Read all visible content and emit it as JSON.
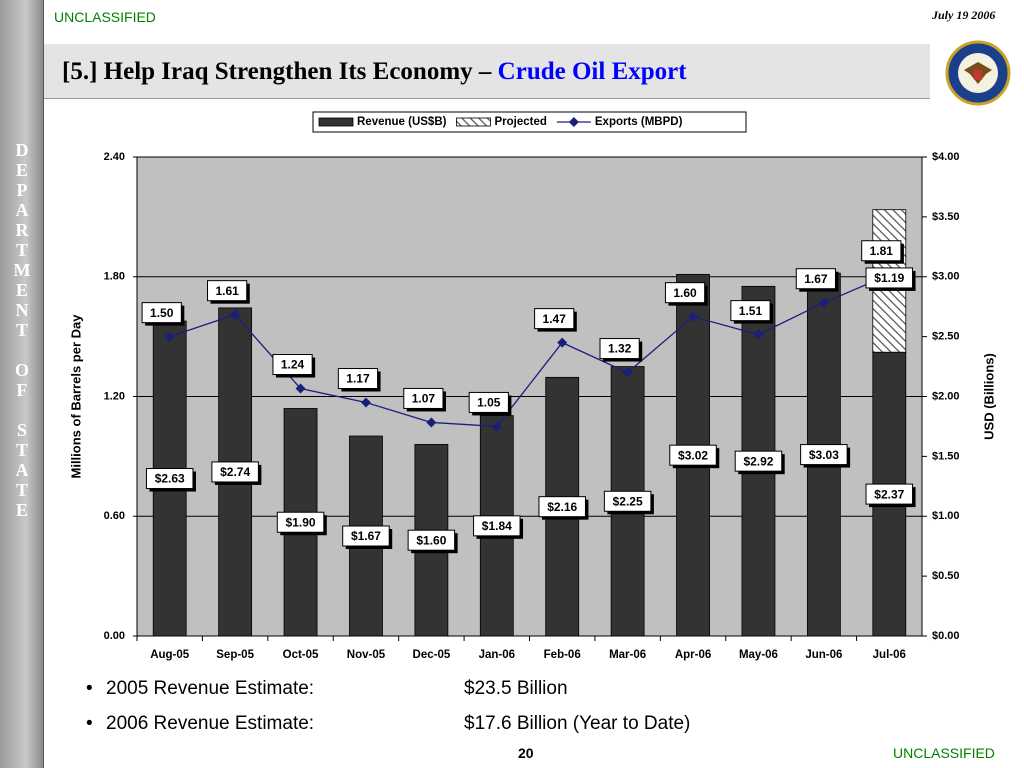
{
  "slide": {
    "classification_top": "UNCLASSIFIED",
    "date": "July 19 2006",
    "title_main": "[5.] Help Iraq Strengthen Its Economy –",
    "title_highlight": "Crude Oil Export",
    "sidebar": "DEPARTMENT OF STATE",
    "bullets": [
      [
        "2005 Revenue Estimate:",
        "$23.5 Billion"
      ],
      [
        "2006 Revenue Estimate:",
        "$17.6 Billion (Year to Date)"
      ]
    ],
    "page_number": "20",
    "classification_bottom": "UNCLASSIFIED"
  },
  "chart_data": {
    "type": "bar",
    "y_label": "Millions of Barrels per Day",
    "y2_label": "USD (Billions)",
    "categories": [
      "Aug-05",
      "Sep-05",
      "Oct-05",
      "Nov-05",
      "Dec-05",
      "Jan-06",
      "Feb-06",
      "Mar-06",
      "Apr-06",
      "May-06",
      "Jun-06",
      "Jul-06"
    ],
    "series": [
      {
        "name": "Revenue (US$B)",
        "type": "bar",
        "axis": "y2",
        "color": "#333333",
        "values": [
          2.63,
          2.74,
          1.9,
          1.67,
          1.6,
          1.84,
          2.16,
          2.25,
          3.02,
          2.92,
          3.03,
          2.37
        ],
        "value_labels": [
          "$2.63",
          "$2.74",
          "$1.90",
          "$1.67",
          "$1.60",
          "$1.84",
          "$2.16",
          "$2.25",
          "$3.02",
          "$2.92",
          "$3.03",
          "$2.37"
        ]
      },
      {
        "name": "Projected",
        "type": "bar",
        "axis": "y2",
        "stacked": true,
        "color": "#ffffff",
        "values": [
          null,
          null,
          null,
          null,
          null,
          null,
          null,
          null,
          null,
          null,
          null,
          1.19
        ],
        "value_labels": [
          null,
          null,
          null,
          null,
          null,
          null,
          null,
          null,
          null,
          null,
          null,
          "$1.19"
        ]
      },
      {
        "name": "Exports (MBPD)",
        "type": "line",
        "color": "#1a1f7a",
        "values": [
          1.5,
          1.61,
          1.24,
          1.17,
          1.07,
          1.05,
          1.47,
          1.32,
          1.6,
          1.51,
          1.67,
          1.81
        ],
        "value_labels": [
          "1.50",
          "1.61",
          "1.24",
          "1.17",
          "1.07",
          "1.05",
          "1.47",
          "1.32",
          "1.60",
          "1.51",
          "1.67",
          "1.81"
        ]
      }
    ],
    "ylim": [
      0,
      2.4
    ],
    "yticks": [
      {
        "value": 0,
        "label": "0.00"
      },
      {
        "value": 0.6,
        "label": "0.60"
      },
      {
        "value": 1.2,
        "label": "1.20"
      },
      {
        "value": 1.8,
        "label": "1.80"
      },
      {
        "value": 2.4,
        "label": "2.40"
      }
    ],
    "y2lim": [
      0,
      4
    ],
    "y2ticks": [
      {
        "value": 0,
        "label": "$0.00"
      },
      {
        "value": 0.5,
        "label": "$0.50"
      },
      {
        "value": 1,
        "label": "$1.00"
      },
      {
        "value": 1.5,
        "label": "$1.50"
      },
      {
        "value": 2,
        "label": "$2.00"
      },
      {
        "value": 2.5,
        "label": "$2.50"
      },
      {
        "value": 3,
        "label": "$3.00"
      },
      {
        "value": 3.5,
        "label": "$3.50"
      },
      {
        "value": 4,
        "label": "$4.00"
      }
    ],
    "grid": true,
    "legend": "top"
  }
}
